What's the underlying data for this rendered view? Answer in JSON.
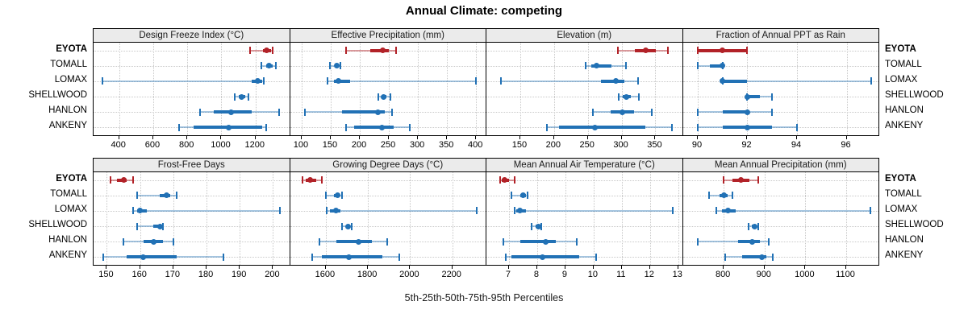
{
  "title": "Annual Climate: competing",
  "caption": "5th-25th-50th-75th-95th Percentiles",
  "sites": [
    "EYOTA",
    "TOMALL",
    "LOMAX",
    "SHELLWOOD",
    "HANLON",
    "ANKENY"
  ],
  "highlight_site": "EYOTA",
  "colors": {
    "highlight": "#b22228",
    "highlight_light": "rgba(178,34,40,0.45)",
    "normal": "#2171b5",
    "normal_light": "rgba(33,113,181,0.4)",
    "grid": "#c8c8c8",
    "header_bg": "#ebebeb",
    "border": "#000000"
  },
  "chart_data": {
    "type": "dotplot-trellis",
    "title": "Annual Climate: competing",
    "xlabel": "5th-25th-50th-75th-95th Percentiles",
    "percentiles": [
      5,
      25,
      50,
      75,
      95
    ],
    "legend_position": "none",
    "grid": "dotted",
    "layout_rows": 2,
    "layout_cols": 4,
    "sites": [
      "EYOTA",
      "TOMALL",
      "LOMAX",
      "SHELLWOOD",
      "HANLON",
      "ANKENY"
    ],
    "panels": [
      {
        "label": "Design Freeze Index (°C)",
        "range": [
          250,
          1400
        ],
        "ticks": [
          400,
          600,
          800,
          1000,
          1200
        ],
        "series": [
          {
            "site": "EYOTA",
            "values": [
              1170,
              1245,
              1265,
              1290,
              1300
            ]
          },
          {
            "site": "TOMALL",
            "values": [
              1232,
              1262,
              1280,
              1300,
              1318
            ]
          },
          {
            "site": "LOMAX",
            "values": [
              303,
              1176,
              1211,
              1240,
              1248
            ]
          },
          {
            "site": "SHELLWOOD",
            "values": [
              1076,
              1100,
              1119,
              1140,
              1159
            ]
          },
          {
            "site": "HANLON",
            "values": [
              874,
              957,
              1059,
              1176,
              1340
            ]
          },
          {
            "site": "ANKENY",
            "values": [
              752,
              836,
              1041,
              1237,
              1265
            ]
          }
        ]
      },
      {
        "label": "Effective Precipitation (mm)",
        "range": [
          80,
          417
        ],
        "ticks": [
          100,
          150,
          200,
          250,
          300,
          350,
          400
        ],
        "series": [
          {
            "site": "EYOTA",
            "values": [
              176,
              218,
              240,
              250,
              263
            ]
          },
          {
            "site": "TOMALL",
            "values": [
              149,
              157,
              161,
              164,
              167
            ]
          },
          {
            "site": "LOMAX",
            "values": [
              144,
              155,
              163,
              183,
              400
            ]
          },
          {
            "site": "SHELLWOOD",
            "values": [
              232,
              237,
              241,
              246,
              253
            ]
          },
          {
            "site": "HANLON",
            "values": [
              106,
              169,
              231,
              243,
              256
            ]
          },
          {
            "site": "ANKENY",
            "values": [
              176,
              190,
              238,
              258,
              286
            ]
          }
        ]
      },
      {
        "label": "Elevation (m)",
        "range": [
          100,
          390
        ],
        "ticks": [
          150,
          200,
          250,
          300,
          350
        ],
        "series": [
          {
            "site": "EYOTA",
            "values": [
              295,
              319,
              336,
              351,
              369
            ]
          },
          {
            "site": "TOMALL",
            "values": [
              247,
              255,
              263,
              285,
              306
            ]
          },
          {
            "site": "LOMAX",
            "values": [
              121,
              270,
              291,
              304,
              324
            ]
          },
          {
            "site": "SHELLWOOD",
            "values": [
              296,
              302,
              307,
              314,
              325
            ]
          },
          {
            "site": "HANLON",
            "values": [
              258,
              284,
              301,
              319,
              345
            ]
          },
          {
            "site": "ANKENY",
            "values": [
              189,
              207,
              260,
              335,
              374
            ]
          }
        ]
      },
      {
        "label": "Fraction of Annual PPT as Rain",
        "range": [
          89.4,
          97.3
        ],
        "ticks": [
          90,
          92,
          94,
          96
        ],
        "series": [
          {
            "site": "EYOTA",
            "values": [
              90,
              90,
              91,
              92,
              92
            ]
          },
          {
            "site": "TOMALL",
            "values": [
              90,
              90.5,
              91,
              91,
              91
            ]
          },
          {
            "site": "LOMAX",
            "values": [
              91,
              91,
              91,
              92,
              97
            ]
          },
          {
            "site": "SHELLWOOD",
            "values": [
              92,
              92,
              92,
              92.5,
              93
            ]
          },
          {
            "site": "HANLON",
            "values": [
              90,
              91,
              92,
              92,
              93
            ]
          },
          {
            "site": "ANKENY",
            "values": [
              90,
              91,
              92,
              93,
              94
            ]
          }
        ]
      },
      {
        "label": "Frost-Free Days",
        "range": [
          146,
          205
        ],
        "ticks": [
          150,
          160,
          170,
          180,
          190,
          200
        ],
        "series": [
          {
            "site": "EYOTA",
            "values": [
              151,
              153,
              155,
              156,
              158
            ]
          },
          {
            "site": "TOMALL",
            "values": [
              159,
              166,
              168,
              169,
              171
            ]
          },
          {
            "site": "LOMAX",
            "values": [
              158,
              159,
              160,
              162,
              202
            ]
          },
          {
            "site": "SHELLWOOD",
            "values": [
              159,
              164,
              166,
              167,
              167
            ]
          },
          {
            "site": "HANLON",
            "values": [
              155,
              161,
              164,
              167,
              170
            ]
          },
          {
            "site": "ANKENY",
            "values": [
              149,
              156,
              161,
              171,
              185
            ]
          }
        ]
      },
      {
        "label": "Growing Degree Days (°C)",
        "range": [
          1430,
          2360
        ],
        "ticks": [
          1600,
          1800,
          2000,
          2200
        ],
        "series": [
          {
            "site": "EYOTA",
            "values": [
              1490,
              1505,
              1525,
              1555,
              1580
            ]
          },
          {
            "site": "TOMALL",
            "values": [
              1600,
              1640,
              1655,
              1665,
              1676
            ]
          },
          {
            "site": "LOMAX",
            "values": [
              1604,
              1620,
              1648,
              1670,
              2315
            ]
          },
          {
            "site": "SHELLWOOD",
            "values": [
              1676,
              1695,
              1705,
              1712,
              1724
            ]
          },
          {
            "site": "HANLON",
            "values": [
              1568,
              1650,
              1755,
              1820,
              1890
            ]
          },
          {
            "site": "ANKENY",
            "values": [
              1534,
              1580,
              1710,
              1870,
              1950
            ]
          }
        ]
      },
      {
        "label": "Mean Annual Air Temperature (°C)",
        "range": [
          6.2,
          13.15
        ],
        "ticks": [
          7,
          8,
          9,
          10,
          11,
          12,
          13
        ],
        "series": [
          {
            "site": "EYOTA",
            "values": [
              6.7,
              6.75,
              6.85,
              7.0,
              7.2
            ]
          },
          {
            "site": "TOMALL",
            "values": [
              7.1,
              7.4,
              7.5,
              7.6,
              7.65
            ]
          },
          {
            "site": "LOMAX",
            "values": [
              7.2,
              7.25,
              7.4,
              7.6,
              12.8
            ]
          },
          {
            "site": "SHELLWOOD",
            "values": [
              7.8,
              7.95,
              8.05,
              8.1,
              8.15
            ]
          },
          {
            "site": "HANLON",
            "values": [
              6.8,
              7.4,
              8.3,
              8.65,
              9.4
            ]
          },
          {
            "site": "ANKENY",
            "values": [
              6.9,
              7.1,
              8.2,
              9.5,
              10.1
            ]
          }
        ]
      },
      {
        "label": "Mean Annual Precipitation (mm)",
        "range": [
          700,
          1180
        ],
        "ticks": [
          800,
          900,
          1000,
          1100
        ],
        "series": [
          {
            "site": "EYOTA",
            "values": [
              800,
              822,
              842,
              862,
              885
            ]
          },
          {
            "site": "TOMALL",
            "values": [
              765,
              790,
              800,
              810,
              821
            ]
          },
          {
            "site": "LOMAX",
            "values": [
              782,
              796,
              811,
              829,
              1160
            ]
          },
          {
            "site": "SHELLWOOD",
            "values": [
              861,
              868,
              875,
              880,
              885
            ]
          },
          {
            "site": "HANLON",
            "values": [
              737,
              836,
              870,
              889,
              910
            ]
          },
          {
            "site": "ANKENY",
            "values": [
              803,
              846,
              893,
              905,
              920
            ]
          }
        ]
      }
    ]
  }
}
